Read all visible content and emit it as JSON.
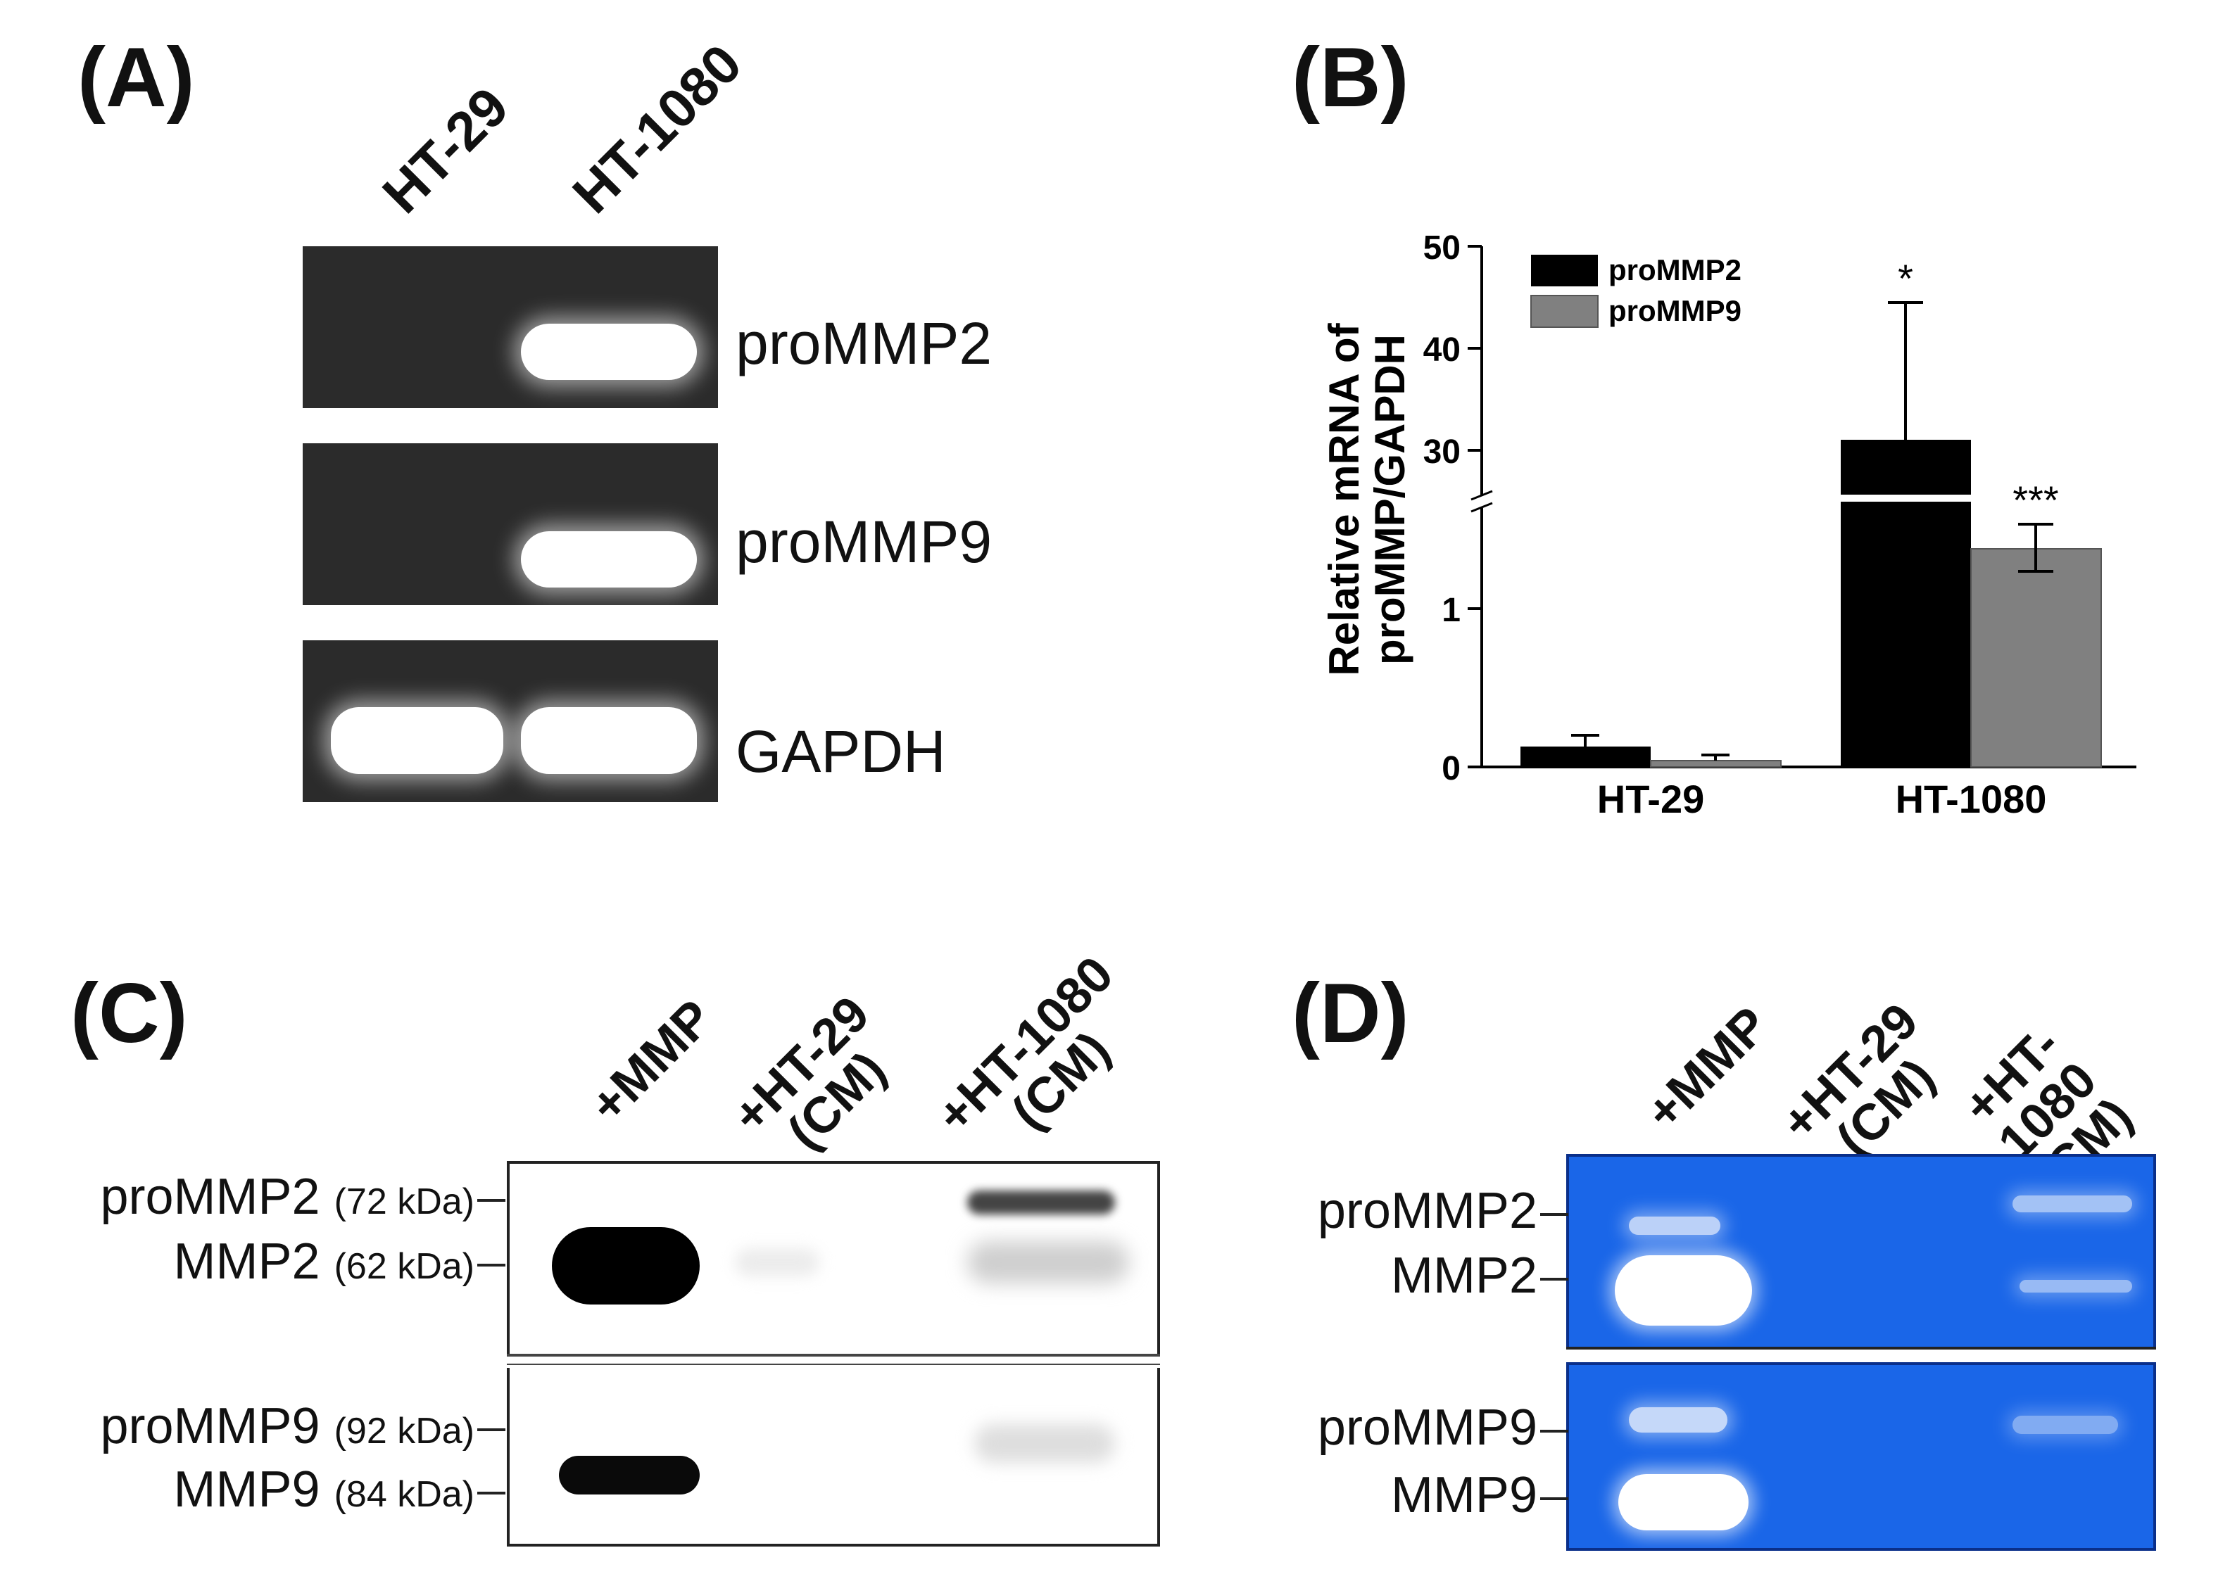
{
  "panels": {
    "a": {
      "label": "(A)",
      "lanes": [
        "HT-29",
        "HT-1080"
      ],
      "genes": [
        "proMMP2",
        "proMMP9",
        "GAPDH"
      ]
    },
    "b": {
      "label": "(B)",
      "ylabel_line1": "Relative mRNA of",
      "ylabel_line2": "proMMP/GAPDH",
      "yticks_lower": [
        "0",
        "1"
      ],
      "yticks_upper": [
        "30",
        "40",
        "50"
      ],
      "categories": [
        "HT-29",
        "HT-1080"
      ],
      "legend": [
        "proMMP2",
        "proMMP9"
      ],
      "sig": [
        "*",
        "***"
      ]
    },
    "c": {
      "label": "(C)",
      "lanes": [
        {
          "line1": "+MMP",
          "line2": ""
        },
        {
          "line1": "+HT-29",
          "line2": "(CM)"
        },
        {
          "line1": "+HT-1080",
          "line2": "(CM)"
        }
      ],
      "markers": [
        {
          "name": "proMMP2",
          "kda": "(72 kDa)"
        },
        {
          "name": "MMP2",
          "kda": "(62 kDa)"
        },
        {
          "name": "proMMP9",
          "kda": "(92 kDa)"
        },
        {
          "name": "MMP9",
          "kda": "(84 kDa)"
        }
      ]
    },
    "d": {
      "label": "(D)",
      "lanes": [
        {
          "line1": "+MMP",
          "line2": ""
        },
        {
          "line1": "+HT-29",
          "line2": "(CM)"
        },
        {
          "line1": "+HT-1080",
          "line2": "(CM)"
        }
      ],
      "markers": [
        "proMMP2",
        "MMP2",
        "proMMP9",
        "MMP9"
      ]
    }
  },
  "chart_data": {
    "type": "bar",
    "title": "",
    "xlabel": "",
    "ylabel": "Relative mRNA of proMMP/GAPDH",
    "categories": [
      "HT-29",
      "HT-1080"
    ],
    "series": [
      {
        "name": "proMMP2",
        "values": [
          0.13,
          31.0
        ],
        "error": [
          0.07,
          13.5
        ],
        "color": "#000000"
      },
      {
        "name": "proMMP9",
        "values": [
          0.04,
          1.38
        ],
        "error": [
          0.03,
          0.15
        ],
        "color": "#808080"
      }
    ],
    "axis_break": {
      "lower": [
        0,
        1.6
      ],
      "upper": [
        26,
        50
      ]
    },
    "significance": {
      "HT-1080": {
        "proMMP2": "*",
        "proMMP9": "***"
      }
    },
    "legend_position": "top-left",
    "grid": false
  }
}
